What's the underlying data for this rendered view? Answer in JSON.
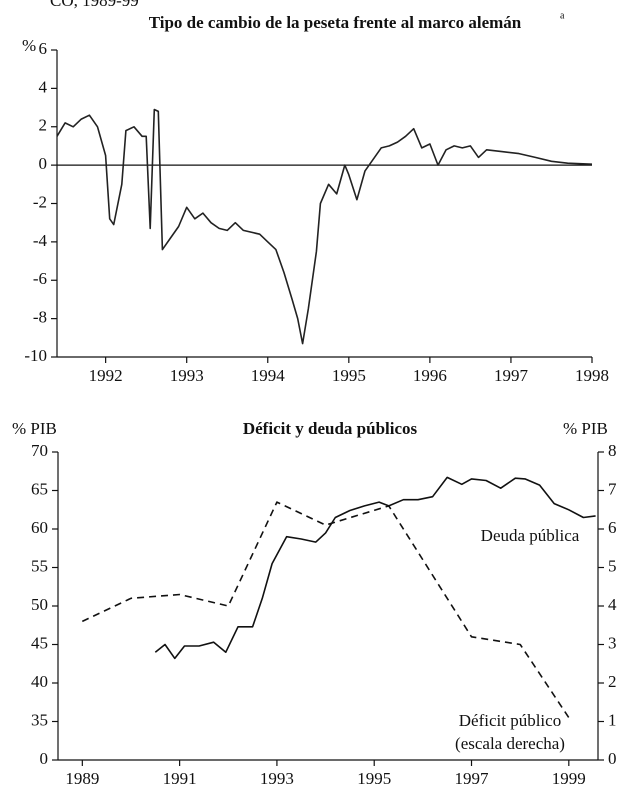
{
  "header": "CO, 1989-99",
  "chart_data": [
    {
      "type": "line",
      "title": "Tipo de cambio de la peseta frente al marco alemán",
      "title_note": "a",
      "y_label": "%",
      "xlim": [
        1991.9,
        1998.5
      ],
      "xticks": [
        {
          "value": 1992.5,
          "label": "1992"
        },
        {
          "value": 1993.5,
          "label": "1993"
        },
        {
          "value": 1994.5,
          "label": "1994"
        },
        {
          "value": 1995.5,
          "label": "1995"
        },
        {
          "value": 1996.5,
          "label": "1996"
        },
        {
          "value": 1997.5,
          "label": "1997"
        },
        {
          "value": 1998.5,
          "label": "1998"
        }
      ],
      "ylim": [
        -10,
        6
      ],
      "yticks": [
        -10,
        -8,
        -6,
        -4,
        -2,
        0,
        2,
        4,
        6
      ],
      "zero_line": true,
      "color": "#222222",
      "x": [
        1991.9,
        1992.0,
        1992.1,
        1992.2,
        1992.3,
        1992.4,
        1992.5,
        1992.55,
        1992.6,
        1992.7,
        1992.75,
        1992.85,
        1992.95,
        1993.0,
        1993.05,
        1993.1,
        1993.15,
        1993.2,
        1993.3,
        1993.4,
        1993.5,
        1993.6,
        1993.7,
        1993.8,
        1993.9,
        1994.0,
        1994.1,
        1994.2,
        1994.4,
        1994.5,
        1994.6,
        1994.7,
        1994.8,
        1994.87,
        1994.93,
        1995.0,
        1995.1,
        1995.15,
        1995.25,
        1995.35,
        1995.45,
        1995.5,
        1995.6,
        1995.7,
        1995.8,
        1995.9,
        1996.0,
        1996.1,
        1996.2,
        1996.3,
        1996.4,
        1996.5,
        1996.6,
        1996.7,
        1996.8,
        1996.9,
        1997.0,
        1997.1,
        1997.2,
        1997.4,
        1997.6,
        1997.8,
        1998.0,
        1998.2,
        1998.5
      ],
      "values": [
        1.5,
        2.2,
        2.0,
        2.4,
        2.6,
        2.0,
        0.5,
        -2.8,
        -3.1,
        -1.0,
        1.8,
        2.0,
        1.5,
        1.5,
        -3.3,
        2.9,
        2.8,
        -4.4,
        -3.8,
        -3.2,
        -2.2,
        -2.8,
        -2.5,
        -3.0,
        -3.3,
        -3.4,
        -3.0,
        -3.4,
        -3.6,
        -4.0,
        -4.4,
        -5.6,
        -7.0,
        -8.0,
        -9.3,
        -7.5,
        -4.5,
        -2.0,
        -1.0,
        -1.5,
        0.0,
        -0.5,
        -1.8,
        -0.3,
        0.3,
        0.9,
        1.0,
        1.2,
        1.5,
        1.9,
        0.9,
        1.1,
        0.0,
        0.8,
        1.0,
        0.9,
        1.0,
        0.4,
        0.8,
        0.7,
        0.6,
        0.4,
        0.2,
        0.1,
        0.05
      ]
    },
    {
      "type": "line",
      "title": "Déficit y deuda públicos",
      "y_label": "% PIB",
      "y2_label": "% PIB",
      "xlim": [
        1988.5,
        1999.6
      ],
      "xticks": [
        1989,
        1991,
        1993,
        1995,
        1997,
        1999
      ],
      "ylim": [
        0,
        70
      ],
      "yticks": [
        0,
        35,
        40,
        45,
        50,
        55,
        60,
        65,
        70
      ],
      "axis_break": true,
      "y2lim": [
        0,
        8
      ],
      "y2ticks": [
        0,
        1,
        2,
        3,
        4,
        5,
        6,
        7,
        8
      ],
      "annotations": [
        "(escala derecha)"
      ],
      "series": [
        {
          "name": "Deuda pública",
          "color": "#111111",
          "dashed": false,
          "x": [
            1990.5,
            1990.7,
            1990.9,
            1991.1,
            1991.4,
            1991.7,
            1991.95,
            1992.2,
            1992.5,
            1992.7,
            1992.9,
            1993.2,
            1993.5,
            1993.8,
            1994.0,
            1994.2,
            1994.5,
            1994.8,
            1995.1,
            1995.3,
            1995.6,
            1995.9,
            1996.2,
            1996.5,
            1996.8,
            1997.0,
            1997.3,
            1997.6,
            1997.9,
            1998.1,
            1998.4,
            1998.7,
            1999.0,
            1999.3,
            1999.55
          ],
          "values": [
            44,
            45,
            43.2,
            44.8,
            44.8,
            45.3,
            44,
            47.3,
            47.3,
            51,
            55.5,
            59,
            58.7,
            58.3,
            59.5,
            61.5,
            62.4,
            63,
            63.5,
            63,
            63.8,
            63.8,
            64.2,
            66.7,
            65.8,
            66.5,
            66.3,
            65.3,
            66.6,
            66.5,
            65.7,
            63.3,
            62.5,
            61.5,
            61.7
          ]
        },
        {
          "name": "Déficit público",
          "color": "#111111",
          "dashed": true,
          "axis": "y2",
          "x": [
            1989,
            1990,
            1991,
            1992,
            1993,
            1994,
            1995.3,
            1997,
            1998,
            1999
          ],
          "values": [
            3.6,
            4.2,
            4.3,
            4.0,
            6.7,
            6.1,
            6.6,
            3.2,
            3.0,
            1.1
          ]
        }
      ]
    }
  ]
}
